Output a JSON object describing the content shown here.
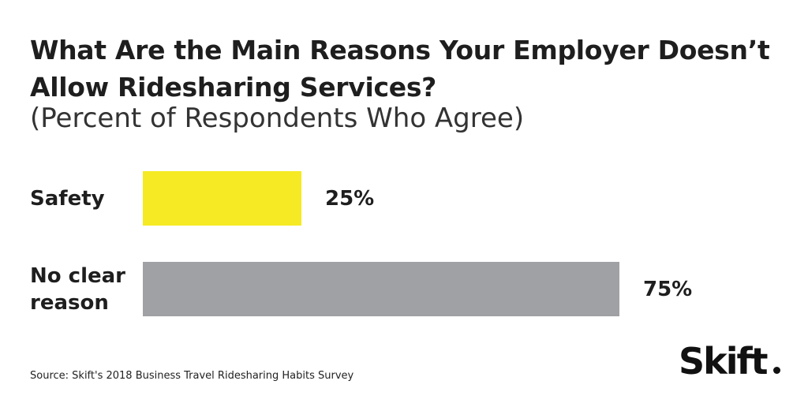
{
  "header": {
    "title": "What Are the Main Reasons Your Employer Doesn’t Allow Ridesharing Services?",
    "subtitle": "(Percent of Respondents Who Agree)"
  },
  "chart_data": {
    "type": "bar",
    "orientation": "horizontal",
    "categories": [
      "Safety",
      "No clear reason"
    ],
    "values": [
      25,
      75
    ],
    "value_labels": [
      "25%",
      "75%"
    ],
    "colors": [
      "#f5ea24",
      "#a0a1a4"
    ],
    "xlim": [
      0,
      100
    ],
    "grid": false,
    "legend": "none"
  },
  "footer": {
    "source": "Source: Skift's 2018 Business Travel Ridesharing Habits Survey",
    "logo": "Skift"
  }
}
